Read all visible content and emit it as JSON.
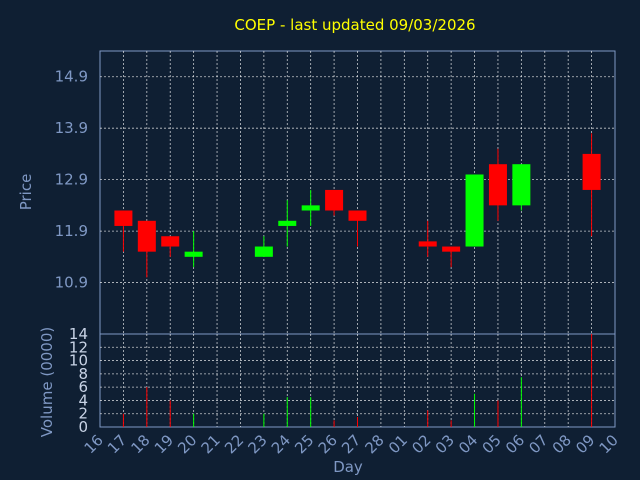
{
  "chart_data": {
    "type": "candlestick",
    "title": "COEP - last updated 09/03/2026",
    "xlabel": "Day",
    "ylabel_price": "Price",
    "ylabel_volume": "Volume (0000)",
    "x_ticks": [
      "16",
      "17",
      "18",
      "19",
      "20",
      "21",
      "22",
      "23",
      "24",
      "25",
      "26",
      "27",
      "28",
      "01",
      "02",
      "03",
      "04",
      "05",
      "06",
      "07",
      "08",
      "09",
      "10"
    ],
    "price_ticks": [
      10.9,
      11.9,
      12.9,
      13.9,
      14.9
    ],
    "price_range": [
      9.9,
      15.4
    ],
    "volume_ticks": [
      0,
      2,
      4,
      6,
      8,
      10,
      12,
      14
    ],
    "volume_range": [
      0,
      14
    ],
    "grid": true,
    "colors": {
      "up": "#00ff00",
      "down": "#ff0000",
      "grid": "#ffffff",
      "frame": "#7f98c4",
      "title": "#ffff00",
      "background": "#0f1f33"
    },
    "candles": [
      {
        "day": "17",
        "open": 12.3,
        "close": 12.0,
        "high": 12.3,
        "low": 11.5,
        "volume": 2.0
      },
      {
        "day": "18",
        "open": 12.1,
        "close": 11.5,
        "high": 12.1,
        "low": 11.0,
        "volume": 6.0
      },
      {
        "day": "19",
        "open": 11.8,
        "close": 11.6,
        "high": 11.8,
        "low": 11.4,
        "volume": 4.0
      },
      {
        "day": "20",
        "open": 11.4,
        "close": 11.5,
        "high": 11.9,
        "low": 11.2,
        "volume": 2.0
      },
      {
        "day": "23",
        "open": 11.4,
        "close": 11.6,
        "high": 11.8,
        "low": 11.4,
        "volume": 2.0
      },
      {
        "day": "24",
        "open": 12.0,
        "close": 12.1,
        "high": 12.5,
        "low": 11.6,
        "volume": 4.5
      },
      {
        "day": "25",
        "open": 12.3,
        "close": 12.4,
        "high": 12.7,
        "low": 12.0,
        "volume": 4.5
      },
      {
        "day": "26",
        "open": 12.7,
        "close": 12.3,
        "high": 12.7,
        "low": 12.2,
        "volume": 1.0
      },
      {
        "day": "27",
        "open": 12.3,
        "close": 12.1,
        "high": 12.3,
        "low": 11.6,
        "volume": 1.5
      },
      {
        "day": "02",
        "open": 11.7,
        "close": 11.6,
        "high": 12.1,
        "low": 11.4,
        "volume": 2.5
      },
      {
        "day": "03",
        "open": 11.6,
        "close": 11.5,
        "high": 11.6,
        "low": 11.2,
        "volume": 1.0
      },
      {
        "day": "04",
        "open": 11.6,
        "close": 13.0,
        "high": 13.0,
        "low": 11.6,
        "volume": 5.0
      },
      {
        "day": "05",
        "open": 13.2,
        "close": 12.4,
        "high": 13.5,
        "low": 12.1,
        "volume": 4.0
      },
      {
        "day": "06",
        "open": 12.4,
        "close": 13.2,
        "high": 13.2,
        "low": 12.3,
        "volume": 7.5
      },
      {
        "day": "09",
        "open": 13.4,
        "close": 12.7,
        "high": 13.8,
        "low": 11.8,
        "volume": 14.0
      }
    ]
  }
}
